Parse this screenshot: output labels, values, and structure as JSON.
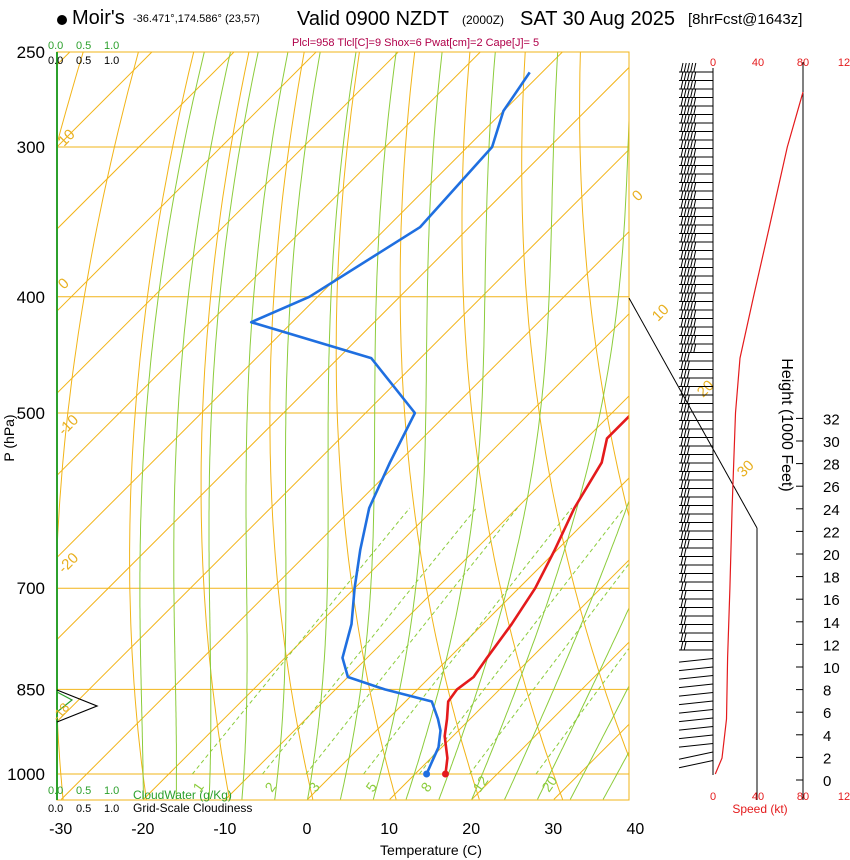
{
  "header": {
    "station": "Moir's",
    "coords": "-36.471°,174.586° (23,57)",
    "valid": "Valid 0900 NZDT",
    "utc": "(2000Z)",
    "date": "SAT 30 Aug 2025",
    "forecast": "[8hrFcst@1643z]",
    "params": "Plcl=958 Tlcl[C]=9 Shox=6 Pwat[cm]=2 Cape[J]= 5"
  },
  "chart_data": {
    "type": "skew-t",
    "title": "Valid 0900 NZDT (2000Z) SAT 30 Aug 2025",
    "xlabel": "Temperature (C)",
    "ylabel": "P (hPa)",
    "y2label": "Height (1000 Feet)",
    "x_ticks": [
      "-30",
      "-20",
      "-10",
      "0",
      "10",
      "20",
      "30",
      "40"
    ],
    "p_ticks": [
      "250",
      "300",
      "400",
      "500",
      "700",
      "850",
      "1000"
    ],
    "height_ticks": [
      "0",
      "2",
      "4",
      "6",
      "8",
      "10",
      "12",
      "14",
      "16",
      "18",
      "20",
      "22",
      "24",
      "26",
      "28",
      "30",
      "32"
    ],
    "speed_ticks": [
      "0",
      "40",
      "80",
      "12"
    ],
    "speed_label": "Speed (kt)",
    "isotherm_labels": [
      "10",
      "0",
      "-10",
      "-20",
      "0",
      "10",
      "20",
      "30"
    ],
    "mixing_ratio_labels": [
      "1",
      "2",
      "3",
      "5",
      "8",
      "12",
      "20"
    ],
    "cloud_scale": {
      "label_cloudwater": "CloudWater (g/Kg)",
      "label_cloudiness": "Grid-Scale Cloudiness",
      "ticks": [
        "0.0",
        "0.5",
        "1.0"
      ]
    },
    "temperature": [
      [
        1000,
        13.7
      ],
      [
        970,
        12
      ],
      [
        930,
        9
      ],
      [
        900,
        7.2
      ],
      [
        870,
        5.2
      ],
      [
        850,
        4.8
      ],
      [
        830,
        5.3
      ],
      [
        800,
        4.6
      ],
      [
        750,
        3.5
      ],
      [
        700,
        2
      ],
      [
        650,
        -0.3
      ],
      [
        600,
        -3
      ],
      [
        550,
        -5.2
      ],
      [
        525,
        -7.5
      ],
      [
        500,
        -7.5
      ],
      [
        450,
        -8.5
      ],
      [
        400,
        -9.5
      ],
      [
        350,
        -13.5
      ],
      [
        300,
        -22.5
      ],
      [
        270,
        -31
      ],
      [
        260,
        -35.2
      ]
    ],
    "dewpoint": [
      [
        1000,
        11.4
      ],
      [
        975,
        10.5
      ],
      [
        950,
        9.6
      ],
      [
        920,
        7.8
      ],
      [
        900,
        6.1
      ],
      [
        870,
        3.2
      ],
      [
        850,
        -4
      ],
      [
        830,
        -10
      ],
      [
        800,
        -13
      ],
      [
        750,
        -16
      ],
      [
        700,
        -20
      ],
      [
        650,
        -24
      ],
      [
        600,
        -28
      ],
      [
        550,
        -31
      ],
      [
        500,
        -34
      ],
      [
        450,
        -46
      ],
      [
        420,
        -65
      ],
      [
        400,
        -61
      ],
      [
        350,
        -56
      ],
      [
        300,
        -57
      ],
      [
        280,
        -60
      ],
      [
        260,
        -61.5
      ]
    ],
    "wind_speed_profile": [
      [
        1000,
        2
      ],
      [
        970,
        8
      ],
      [
        900,
        12
      ],
      [
        800,
        13
      ],
      [
        700,
        15
      ],
      [
        600,
        17
      ],
      [
        500,
        20
      ],
      [
        450,
        24
      ],
      [
        400,
        36
      ],
      [
        350,
        50
      ],
      [
        300,
        66
      ],
      [
        270,
        80
      ]
    ]
  }
}
